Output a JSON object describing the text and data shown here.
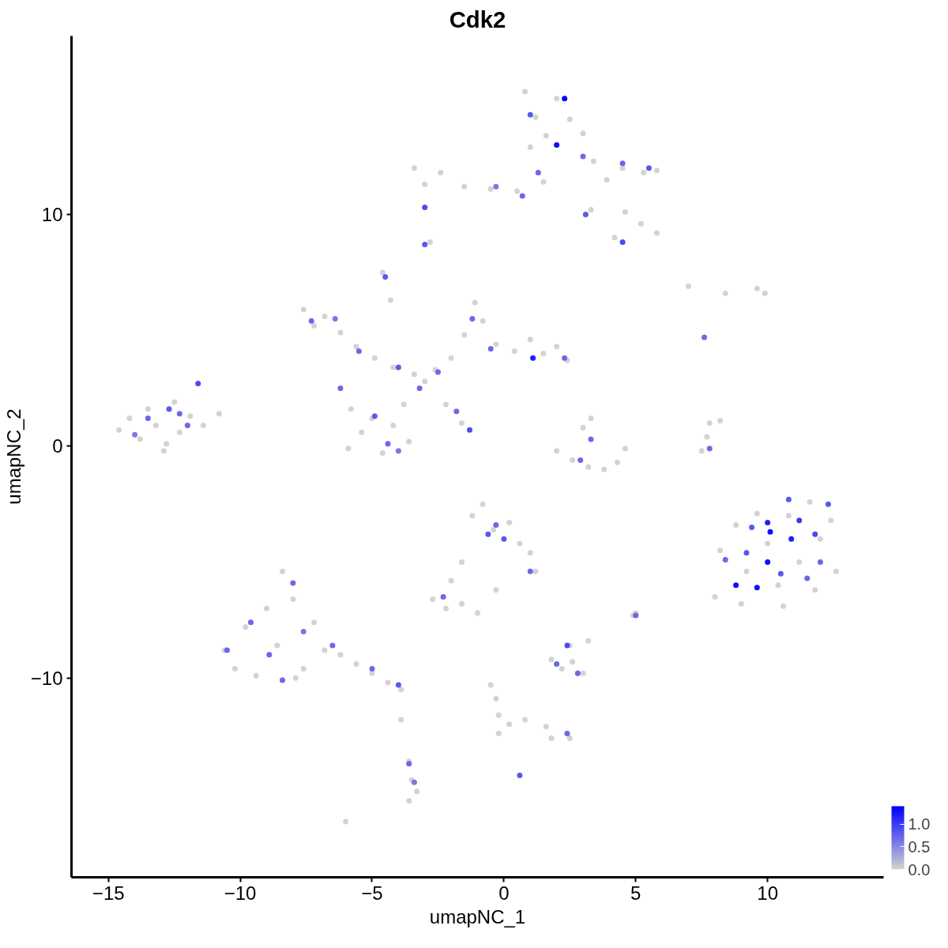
{
  "chart_data": {
    "type": "scatter",
    "title": "Cdk2",
    "xlabel": "umapNC_1",
    "ylabel": "umapNC_2",
    "xlim": [
      -16.4,
      14.4
    ],
    "ylim": [
      -18.6,
      17.7
    ],
    "xticks": [
      -15,
      -10,
      -5,
      0,
      5,
      10
    ],
    "yticks": [
      -10,
      0,
      10
    ],
    "clim": [
      0,
      1.4
    ],
    "cticks": [
      {
        "value": 0,
        "label": "0.0"
      },
      {
        "value": 0.5,
        "label": "0.5"
      },
      {
        "value": 1.0,
        "label": "1.0"
      }
    ],
    "grid": false,
    "marker": "circle",
    "x": [
      -14.6,
      -14.2,
      -13.8,
      -13.5,
      -13.2,
      -12.8,
      -12.5,
      -12.3,
      -11.9,
      -11.4,
      -10.8,
      -12.9,
      -7.6,
      -7.2,
      -6.8,
      -6.2,
      -5.6,
      -4.9,
      -4.2,
      -3.4,
      -3.0,
      -2.6,
      -5.8,
      -5.4,
      -5.0,
      -4.6,
      -4.2,
      -3.8,
      -5.9,
      -3.6,
      -2.0,
      -1.5,
      -1.1,
      -0.8,
      -0.3,
      0.4,
      1.0,
      1.5,
      2.0,
      2.4,
      -4.6,
      -4.3,
      -2.2,
      -1.6,
      0.8,
      1.2,
      1.6,
      2.0,
      2.5,
      3.0,
      1.0,
      -3.4,
      -3.0,
      -2.4,
      -1.5,
      -0.5,
      0.5,
      1.5,
      3.4,
      3.9,
      4.5,
      5.3,
      5.8,
      4.6,
      5.2,
      5.8,
      4.2,
      3.3,
      -2.8,
      2.0,
      2.6,
      3.2,
      3.8,
      4.3,
      4.6,
      3.0,
      3.3,
      8.2,
      8.8,
      9.2,
      9.6,
      10.0,
      10.4,
      10.8,
      11.2,
      11.6,
      12.0,
      12.4,
      12.6,
      9.0,
      10.6,
      11.8,
      8.0,
      -10.6,
      -10.2,
      -9.8,
      -9.4,
      -9.0,
      -8.6,
      -8.4,
      -8.0,
      -7.6,
      -7.2,
      -6.8,
      -6.2,
      -5.6,
      -5.0,
      -4.4,
      -3.9,
      -7.9,
      -1.2,
      -0.8,
      -0.4,
      0.2,
      0.6,
      1.0,
      1.2,
      -1.6,
      -2.0,
      -2.7,
      -2.2,
      -1.6,
      -0.3,
      -1.0,
      1.8,
      2.2,
      2.6,
      3.0,
      2.5,
      3.2,
      -0.5,
      -0.3,
      -0.2,
      0.2,
      0.8,
      1.6,
      2.5,
      -0.2,
      -3.6,
      -3.5,
      -3.3,
      -3.6,
      -3.9,
      7.8,
      7.7,
      7.5,
      8.2,
      7.0,
      8.4,
      9.6,
      9.9,
      -6.0,
      5.0,
      4.9,
      1.8,
      -13.5,
      -12.7,
      -12.0,
      -11.6,
      -14.0,
      -12.3,
      -7.3,
      -6.4,
      -5.5,
      -4.0,
      -3.2,
      -2.5,
      -4.9,
      -4.4,
      -4.0,
      -1.3,
      -1.8,
      -1.2,
      -0.5,
      1.1,
      2.3,
      -4.5,
      -6.2,
      2.3,
      2.0,
      1.0,
      3.0,
      4.5,
      5.5,
      3.1,
      4.5,
      0.7,
      -0.3,
      -3.0,
      -3.0,
      1.3,
      2.9,
      3.3,
      8.8,
      9.6,
      10.0,
      10.1,
      10.0,
      10.9,
      11.2,
      11.8,
      12.3,
      9.2,
      10.5,
      11.5,
      8.4,
      9.4,
      10.8,
      12.0,
      -9.6,
      -8.9,
      -8.0,
      -7.6,
      -6.5,
      -5.0,
      -4.0,
      -10.5,
      -8.4,
      -0.6,
      0.0,
      -0.3,
      -2.3,
      1.0,
      2.4,
      2.0,
      2.8,
      0.6,
      2.4,
      -3.6,
      -3.4,
      7.6,
      7.8,
      5.0
    ],
    "values": [
      0.7,
      1.2,
      0.3,
      1.6,
      0.9,
      0.1,
      1.9,
      0.6,
      1.3,
      0.9,
      1.4,
      -0.2,
      5.9,
      5.2,
      5.6,
      4.9,
      4.3,
      3.8,
      3.4,
      3.1,
      2.8,
      3.3,
      1.6,
      0.6,
      1.2,
      -0.3,
      0.9,
      1.8,
      -0.1,
      0.2,
      3.8,
      4.8,
      6.2,
      5.4,
      4.4,
      4.1,
      4.6,
      4.0,
      4.3,
      3.7,
      7.5,
      6.3,
      1.8,
      1.0,
      15.3,
      14.2,
      13.4,
      15.0,
      14.1,
      13.5,
      12.9,
      12.0,
      11.3,
      11.8,
      11.2,
      11.1,
      11.0,
      11.4,
      12.3,
      11.5,
      12.0,
      11.8,
      11.9,
      10.1,
      9.6,
      9.2,
      9.0,
      10.2,
      8.8,
      -0.2,
      -0.6,
      -0.9,
      -1.0,
      -0.7,
      -0.1,
      0.8,
      1.2,
      -4.5,
      -3.4,
      -5.4,
      -2.9,
      -4.2,
      -6.0,
      -3.0,
      -5.0,
      -2.4,
      -4.0,
      -3.2,
      -5.4,
      -6.8,
      -6.9,
      -6.2,
      -6.5,
      -8.8,
      -9.6,
      -7.8,
      -9.9,
      -7.0,
      -8.6,
      -5.4,
      -6.6,
      -9.6,
      -7.6,
      -8.8,
      -9.0,
      -9.4,
      -9.8,
      -10.2,
      -10.5,
      -10.0,
      -3.0,
      -2.5,
      -3.6,
      -3.3,
      -4.2,
      -4.6,
      -5.4,
      -5.0,
      -5.8,
      -6.6,
      -7.0,
      -6.8,
      -6.2,
      -7.2,
      -9.2,
      -9.6,
      -9.3,
      -9.8,
      -8.6,
      -8.4,
      -10.3,
      -10.9,
      -11.6,
      -12.0,
      -11.8,
      -12.1,
      -12.6,
      -12.4,
      -13.6,
      -14.4,
      -14.9,
      -15.3,
      -11.8,
      1.0,
      0.4,
      -0.2,
      1.1,
      6.9,
      6.6,
      6.8,
      6.6,
      -16.2,
      -7.2,
      -7.3,
      -12.6,
      1.2,
      1.6,
      0.9,
      2.7,
      0.5,
      1.4,
      5.4,
      5.5,
      4.1,
      3.4,
      2.5,
      3.2,
      1.3,
      0.1,
      -0.2,
      0.7,
      1.5,
      5.5,
      4.2,
      3.8,
      3.8,
      7.3,
      2.5,
      15.0,
      13.0,
      14.3,
      12.5,
      12.2,
      12.0,
      10.0,
      8.8,
      10.8,
      11.2,
      10.3,
      8.7,
      11.8,
      -0.6,
      0.3,
      -6.0,
      -6.1,
      -3.3,
      -3.7,
      -5.0,
      -4.0,
      -3.2,
      -3.8,
      -2.5,
      -4.6,
      -5.5,
      -5.7,
      -4.9,
      -3.5,
      -2.3,
      -5.0,
      -7.6,
      -9.0,
      -5.9,
      -8.0,
      -8.6,
      -9.6,
      -10.3,
      -8.8,
      -10.1,
      -3.8,
      -4.0,
      -3.4,
      -6.5,
      -5.4,
      -8.6,
      -9.4,
      -9.8,
      -14.2,
      -12.4,
      -13.7,
      -14.5,
      4.7,
      -0.1,
      -7.3
    ],
    "cvalues": [
      0,
      0,
      0,
      0,
      0,
      0,
      0,
      0,
      0,
      0,
      0,
      0,
      0,
      0,
      0,
      0,
      0,
      0,
      0,
      0,
      0,
      0,
      0,
      0,
      0,
      0,
      0,
      0,
      0,
      0,
      0,
      0,
      0,
      0,
      0,
      0,
      0,
      0,
      0,
      0,
      0,
      0,
      0,
      0,
      0,
      0,
      0,
      0,
      0,
      0,
      0,
      0,
      0,
      0,
      0,
      0,
      0,
      0,
      0,
      0,
      0,
      0,
      0,
      0,
      0,
      0,
      0,
      0,
      0,
      0,
      0,
      0,
      0,
      0,
      0,
      0,
      0,
      0,
      0,
      0,
      0,
      0,
      0,
      0,
      0,
      0,
      0,
      0,
      0,
      0,
      0,
      0,
      0,
      0,
      0,
      0,
      0,
      0,
      0,
      0,
      0,
      0,
      0,
      0,
      0,
      0,
      0,
      0,
      0,
      0,
      0,
      0,
      0,
      0,
      0,
      0,
      0,
      0,
      0,
      0,
      0,
      0,
      0,
      0,
      0,
      0,
      0,
      0,
      0,
      0,
      0,
      0,
      0,
      0,
      0,
      0,
      0,
      0,
      0,
      0,
      0,
      0,
      0,
      0,
      0,
      0,
      0,
      0,
      0,
      0,
      0,
      0,
      0,
      0,
      0,
      0.7,
      0.8,
      0.7,
      0.9,
      0.6,
      0.7,
      0.7,
      0.6,
      0.7,
      0.8,
      0.7,
      0.7,
      0.8,
      0.7,
      0.6,
      0.9,
      0.7,
      0.7,
      0.7,
      1.2,
      0.7,
      0.8,
      0.7,
      1.4,
      1.3,
      0.8,
      0.7,
      0.7,
      0.8,
      0.8,
      0.9,
      0.7,
      0.6,
      0.9,
      0.8,
      0.7,
      0.7,
      0.7,
      1.3,
      1.3,
      1.2,
      1.3,
      1.3,
      1.2,
      1.0,
      0.9,
      0.8,
      0.8,
      0.8,
      0.7,
      0.7,
      0.8,
      0.8,
      0.7,
      0.7,
      0.7,
      0.7,
      0.6,
      0.7,
      0.7,
      0.8,
      0.7,
      0.7,
      0.8,
      0.8,
      0.7,
      0.7,
      0.7,
      0.9,
      0.7,
      0.7,
      0.8,
      0.7,
      0.7,
      0.6,
      0.7,
      0.7,
      0.7
    ]
  }
}
